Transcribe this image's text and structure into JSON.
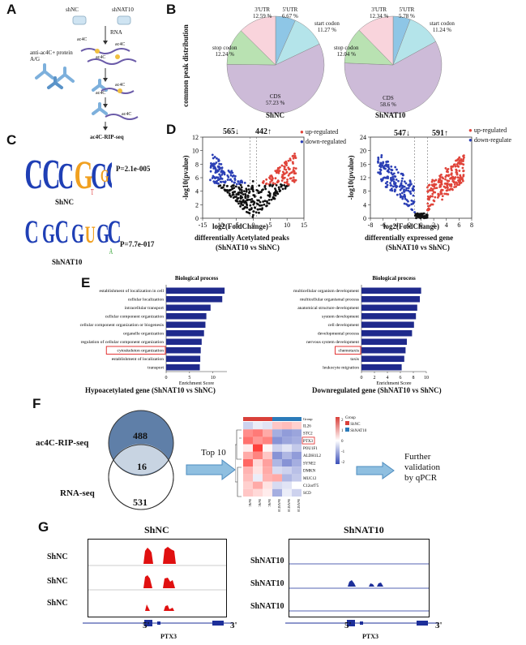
{
  "panel_labels": {
    "A": "A",
    "B": "B",
    "C": "C",
    "D": "D",
    "E": "E",
    "F": "F",
    "G": "G"
  },
  "panel_a": {
    "shnc": "shNC",
    "shnat10": "shNAT10",
    "rna": "RNA",
    "ac4c": "ac4C",
    "antibody": "anti-ac4C+ protein A/G",
    "result": "ac4C-RIP-seq"
  },
  "panel_b": {
    "ylabel": "common peak distribution",
    "colors": {
      "utr3": "#f9d4dc",
      "utr5": "#8ec6e6",
      "start": "#b4e4ea",
      "stop": "#b9e2b2",
      "cds": "#cdbbd8"
    },
    "charts": [
      {
        "name": "ShNC",
        "labels": {
          "utr3": "3'UTR\n12.59 %",
          "utr5": "5'UTR\n6.67 %",
          "start": "start codon\n11.27 %",
          "stop": "stop codon\n12.24 %",
          "cds": "CDS\n57.23 %"
        }
      },
      {
        "name": "ShNAT10",
        "labels": {
          "utr3": "3'UTR\n12.34 %",
          "utr5": "5'UTR\n5.78 %",
          "start": "start codon\n11.24 %",
          "stop": "stop codon\n12.04 %",
          "cds": "CDS\n58.6 %"
        }
      }
    ]
  },
  "panel_c": {
    "motifs": [
      {
        "name": "ShNC",
        "p": "P=2.1e-005"
      },
      {
        "name": "ShNAT10",
        "p": "P=7.7e-017"
      }
    ]
  },
  "panel_d": {
    "left": {
      "ylabel": "-log10(pvalue)",
      "xlabel": "log2(FoldChange)",
      "down": "565↓",
      "up": "442↑",
      "legend_up": "up-regulated",
      "legend_down": "down-regulated",
      "caption": "differentially Acetylated peaks",
      "subcaption": "(ShNAT10 vs ShNC)",
      "xticks": [
        "-15",
        "-10",
        "-5",
        "0",
        "5",
        "10",
        "15"
      ],
      "yticks": [
        "0",
        "2",
        "4",
        "6",
        "8",
        "10",
        "12"
      ]
    },
    "right": {
      "ylabel": "-log10(pvalue)",
      "xlabel": "log2(FoldChange)",
      "down": "547↓",
      "up": "591↑",
      "legend_up": "up-regulated",
      "legend_down": "down-regulate",
      "caption": "differentially expressed gene",
      "subcaption": "(ShNAT10 vs ShNC)",
      "xticks": [
        "-8",
        "-6",
        "-4",
        "-2",
        "0",
        "2",
        "4",
        "6",
        "8"
      ],
      "yticks": [
        "0",
        "4",
        "8",
        "12",
        "16",
        "20",
        "24"
      ]
    },
    "colors": {
      "up": "#e0443a",
      "down": "#2b3fb5",
      "ns": "#111111"
    }
  },
  "panel_e": {
    "left": {
      "title": "Biological process",
      "xlabel": "Enrichment Score",
      "caption": "Hypoacetylated gene (ShNAT10 vs ShNC)",
      "xticks": [
        "0",
        "5",
        "10"
      ],
      "xmax": 13,
      "terms": [
        "establishment of localization in cell",
        "cellular localization",
        "intracellular transport",
        "cellular component organization",
        "cellular component organization or biogenesis",
        "organelle organization",
        "regulation of cellular component organization",
        "cytoskeleton organization",
        "establishment of localization",
        "transport"
      ],
      "values": [
        12.5,
        12.0,
        9.5,
        8.6,
        8.4,
        8.1,
        7.6,
        7.4,
        7.3,
        7.2
      ],
      "highlight": 7
    },
    "right": {
      "title": "Biological process",
      "xlabel": "Enrichment Score",
      "caption": "Downregulated gene (ShNAT10 vs ShNC)",
      "xticks": [
        "0",
        "2",
        "4",
        "6",
        "8",
        "10"
      ],
      "xmax": 10,
      "terms": [
        "multicellular organism development",
        "multicellular organismal process",
        "anatomical structure development",
        "system development",
        "cell development",
        "developmental process",
        "nervous system development",
        "chemotaxis",
        "taxis",
        "leukocyte migration"
      ],
      "values": [
        9.2,
        9.0,
        8.6,
        8.4,
        8.1,
        7.8,
        7.0,
        6.8,
        6.6,
        6.2
      ],
      "highlight": 7
    }
  },
  "panel_f": {
    "venn_top_label": "ac4C-RIP-seq",
    "venn_bottom_label": "RNA-seq",
    "top_only": "488",
    "overlap": "16",
    "bottom_only": "531",
    "arrow_label": "Top 10",
    "heatmap_genes": [
      "IL26",
      "STC2",
      "PTX3",
      "POU1F1",
      "ALDH1L2",
      "SYNE2",
      "DMKN",
      "MUC12",
      "C12orf75",
      "SCD"
    ],
    "heatmap_samples": [
      "ShNC",
      "ShNC",
      "ShNC",
      "ShNAT10",
      "ShNAT10",
      "ShNAT10"
    ],
    "legend_title": "Group",
    "legend_items": [
      "ShNC",
      "ShNAT10"
    ],
    "legend_colors": [
      "#d9403a",
      "#2b7bb9"
    ],
    "scale_ticks": [
      "2",
      "1",
      "0",
      "-1",
      "-2"
    ],
    "highlight_gene": "PTX3",
    "further": "Further\nvalidation\nby qPCR"
  },
  "panel_g": {
    "left": {
      "title": "ShNC",
      "tracks": [
        "ShNC",
        "ShNC",
        "ShNC"
      ],
      "gene": "PTX3",
      "five": "5'",
      "three": "3'"
    },
    "right": {
      "title": "ShNAT10",
      "tracks": [
        "ShNAT10",
        "ShNAT10",
        "ShNAT10"
      ],
      "gene": "PTX3",
      "five": "5'",
      "three": "3'"
    }
  }
}
